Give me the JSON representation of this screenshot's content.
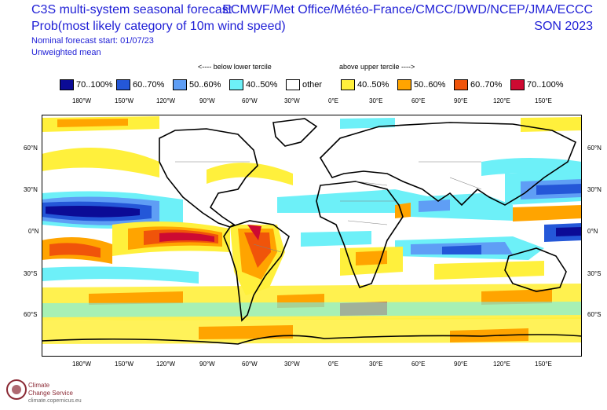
{
  "header": {
    "title_line1": "C3S multi-system seasonal forecast",
    "title_line2": "Prob(most likely category of 10m wind speed)",
    "forecast_start": "Nominal forecast start: 01/07/23",
    "weighting": "Unweighted mean",
    "centres": "ECMWF/Met Office/Météo-France/CMCC/DWD/NCEP/JMA/ECCC",
    "season": "SON 2023"
  },
  "legend": {
    "below_hint": "<---- below lower tercile",
    "above_hint": "above upper tercile ---->",
    "items": [
      {
        "label": "70..100%",
        "color": "#0b0b96"
      },
      {
        "label": "60..70%",
        "color": "#2457d8"
      },
      {
        "label": "50..60%",
        "color": "#5f9ef5"
      },
      {
        "label": "40..50%",
        "color": "#6df0f8"
      },
      {
        "label": "other",
        "color": "#ffffff"
      },
      {
        "label": "40..50%",
        "color": "#fff03c"
      },
      {
        "label": "50..60%",
        "color": "#ffa400"
      },
      {
        "label": "60..70%",
        "color": "#f0540a"
      },
      {
        "label": "70..100%",
        "color": "#cd0a32"
      }
    ]
  },
  "axes": {
    "lon_labels": [
      "180°W",
      "150°W",
      "120°W",
      "90°W",
      "60°W",
      "30°W",
      "0°E",
      "30°E",
      "60°E",
      "90°E",
      "120°E",
      "150°E"
    ],
    "lat_labels_left": [
      "60°N",
      "30°N",
      "0°N",
      "30°S",
      "60°S"
    ],
    "lat_labels_right": [
      "60°N",
      "30°N",
      "0°N",
      "30°S",
      "60°S"
    ]
  },
  "logo": {
    "name_line1": "Climate",
    "name_line2": "Change Service",
    "url": "climate.copernicus.eu"
  }
}
